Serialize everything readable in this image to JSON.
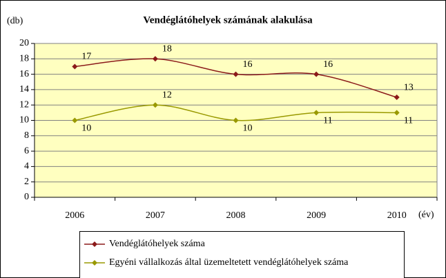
{
  "chart_data": {
    "type": "line",
    "title": "Vendéglátóhelyek számának alakulása",
    "y_label": "(db)",
    "x_label": "(év)",
    "categories": [
      "2006",
      "2007",
      "2008",
      "2009",
      "2010"
    ],
    "series": [
      {
        "name": "Vendéglátóhelyek száma",
        "color": "#8b1a1a",
        "values": [
          17,
          18,
          16,
          16,
          13
        ]
      },
      {
        "name": "Egyéni vállalkozás által üzemeltetett vendéglátóhelyek száma",
        "color": "#999900",
        "values": [
          10,
          12,
          10,
          11,
          11
        ]
      }
    ],
    "ylim": [
      0,
      20
    ],
    "yticks": [
      0,
      2,
      4,
      6,
      8,
      10,
      12,
      14,
      16,
      18,
      20
    ],
    "grid": true,
    "plot_background": "#ffffc0",
    "legend": "bottom"
  }
}
